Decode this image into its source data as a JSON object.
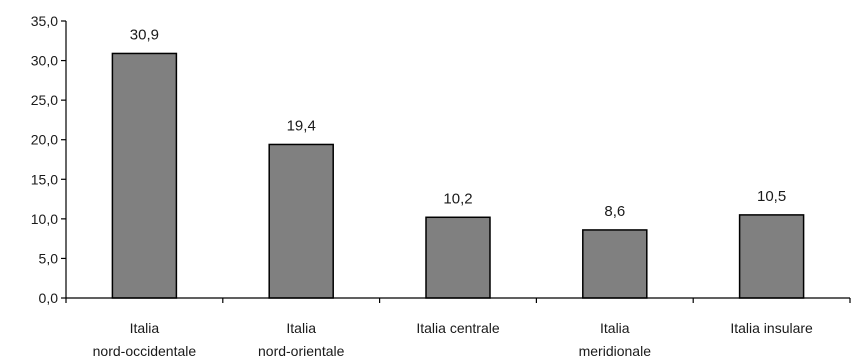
{
  "chart_data": {
    "type": "bar",
    "categories": [
      [
        "Italia",
        "nord-occidentale"
      ],
      [
        "Italia",
        "nord-orientale"
      ],
      [
        "Italia centrale"
      ],
      [
        "Italia",
        "meridionale"
      ],
      [
        "Italia insulare"
      ]
    ],
    "values": [
      30.9,
      19.4,
      10.2,
      8.6,
      10.5
    ],
    "value_labels": [
      "30,9",
      "19,4",
      "10,2",
      "8,6",
      "10,5"
    ],
    "ylim": [
      0,
      35
    ],
    "yticks": [
      0,
      5,
      10,
      15,
      20,
      25,
      30,
      35
    ],
    "ytick_labels": [
      "0,0",
      "5,0",
      "10,0",
      "15,0",
      "20,0",
      "25,0",
      "30,0",
      "35,0"
    ],
    "grid": false,
    "legend": "none",
    "bar_color": "#808080",
    "bar_edge_color": "#000000"
  }
}
